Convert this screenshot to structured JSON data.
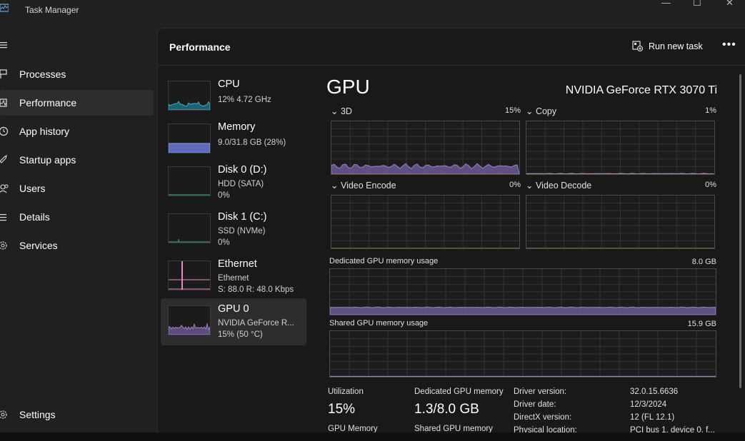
{
  "window": {
    "title": "Task Manager",
    "controls": {
      "minimize": "—",
      "maximize": "☐",
      "close": "✕"
    }
  },
  "nav": {
    "items": [
      {
        "label": "Processes",
        "icon": "processes-icon"
      },
      {
        "label": "Performance",
        "icon": "performance-icon",
        "active": true
      },
      {
        "label": "App history",
        "icon": "history-icon"
      },
      {
        "label": "Startup apps",
        "icon": "startup-icon"
      },
      {
        "label": "Users",
        "icon": "users-icon"
      },
      {
        "label": "Details",
        "icon": "details-icon"
      },
      {
        "label": "Services",
        "icon": "services-icon"
      }
    ],
    "settings": "Settings"
  },
  "header": {
    "title": "Performance",
    "run_new_task": "Run new task",
    "more": "•••"
  },
  "devices": [
    {
      "name": "CPU",
      "line1": "12% 4.72 GHz",
      "line2": "",
      "color": "#2bb6d6"
    },
    {
      "name": "Memory",
      "line1": "9.0/31.8 GB (28%)",
      "line2": "",
      "color": "#6f7fe0"
    },
    {
      "name": "Disk 0 (D:)",
      "line1": "HDD (SATA)",
      "line2": "0%",
      "color": "#4caf7f"
    },
    {
      "name": "Disk 1 (C:)",
      "line1": "SSD (NVMe)",
      "line2": "0%",
      "color": "#4caf7f"
    },
    {
      "name": "Ethernet",
      "line1": "Ethernet",
      "line2": "S: 88.0  R: 48.0 Kbps",
      "color": "#e58ac0"
    },
    {
      "name": "GPU 0",
      "line1": "NVIDIA GeForce R...",
      "line2": "15% (50 °C)",
      "color": "#a07fd0",
      "selected": true
    }
  ],
  "gpu": {
    "title": "GPU",
    "model": "NVIDIA GeForce RTX 3070 Ti",
    "engines": [
      {
        "label": "3D",
        "value": "15%",
        "level": 0.15
      },
      {
        "label": "Copy",
        "value": "1%",
        "level": 0.01
      },
      {
        "label": "Video Encode",
        "value": "0%",
        "level": 0
      },
      {
        "label": "Video Decode",
        "value": "0%",
        "level": 0
      }
    ],
    "dedicated_memory": {
      "label": "Dedicated GPU memory usage",
      "max": "8.0 GB",
      "used_fraction": 0.16
    },
    "shared_memory": {
      "label": "Shared GPU memory usage",
      "max": "15.9 GB",
      "used_fraction": 0.0
    },
    "stats": {
      "utilization_label": "Utilization",
      "utilization_value": "15%",
      "dedicated_label": "Dedicated GPU memory",
      "dedicated_value": "1.3/8.0 GB",
      "gpu_memory_label": "GPU Memory",
      "shared_label": "Shared GPU memory"
    },
    "info": [
      {
        "key": "Driver version:",
        "value": "32.0.15.6636"
      },
      {
        "key": "Driver date:",
        "value": "12/3/2024"
      },
      {
        "key": "DirectX version:",
        "value": "12 (FL 12.1)"
      },
      {
        "key": "Physical location:",
        "value": "PCI bus 1, device 0, f..."
      }
    ]
  },
  "colors": {
    "gpu_purple": "#a07fd0",
    "gpu_fill": "#6a5a92",
    "panel_bg": "#191919",
    "accent_selected": "#2d2d2d"
  }
}
